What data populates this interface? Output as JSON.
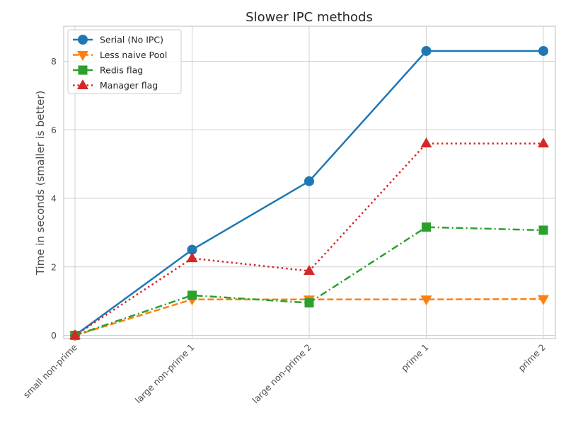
{
  "chart_data": {
    "type": "line",
    "title": "Slower IPC methods",
    "xlabel": "",
    "ylabel": "Time in seconds (smaller is better)",
    "categories": [
      "small non-prime",
      "large non-prime 1",
      "large non-prime 2",
      "prime 1",
      "prime 2"
    ],
    "yticks": [
      0,
      2,
      4,
      6,
      8
    ],
    "ylim": [
      -0.1,
      9.0
    ],
    "grid": true,
    "legend_position": "upper-left",
    "series": [
      {
        "name": "Serial (No IPC)",
        "values": [
          0.0,
          2.5,
          4.5,
          8.3,
          8.3
        ],
        "color": "#1f77b4",
        "marker": "circle",
        "linestyle": "solid"
      },
      {
        "name": "Less naive Pool",
        "values": [
          0.0,
          1.05,
          1.05,
          1.05,
          1.06
        ],
        "color": "#ff7f0e",
        "marker": "triangle-down",
        "linestyle": "dashed"
      },
      {
        "name": "Redis flag",
        "values": [
          0.0,
          1.17,
          0.95,
          3.16,
          3.07
        ],
        "color": "#2ca02c",
        "marker": "square",
        "linestyle": "dashdot"
      },
      {
        "name": "Manager flag",
        "values": [
          0.0,
          2.25,
          1.88,
          5.6,
          5.6
        ],
        "color": "#d62728",
        "marker": "triangle-up",
        "linestyle": "dotted"
      }
    ]
  }
}
